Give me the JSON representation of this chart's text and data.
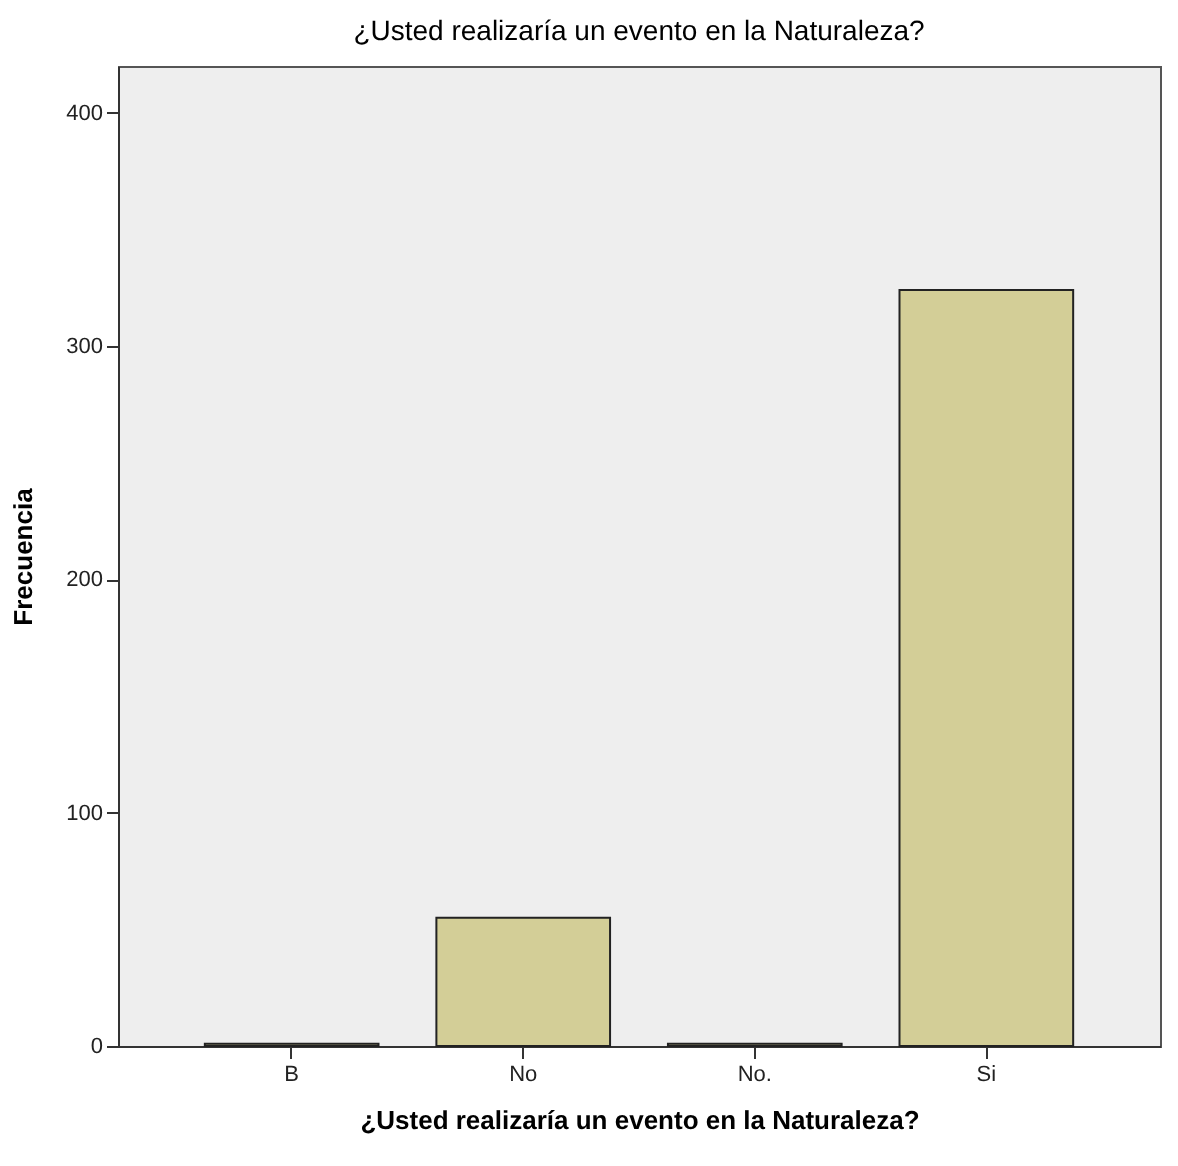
{
  "chart_data": {
    "type": "bar",
    "title": "¿Usted realizaría un evento en la Naturaleza?",
    "xlabel": "¿Usted realizaría un evento en la Naturaleza?",
    "ylabel": "Frecuencia",
    "categories": [
      "B",
      "No",
      "No.",
      "Si"
    ],
    "values": [
      1,
      55,
      1,
      324
    ],
    "color": "#d3ce97",
    "ylim": [
      0,
      420
    ],
    "yticks": [
      0,
      100,
      200,
      300,
      400
    ],
    "grid": false
  }
}
